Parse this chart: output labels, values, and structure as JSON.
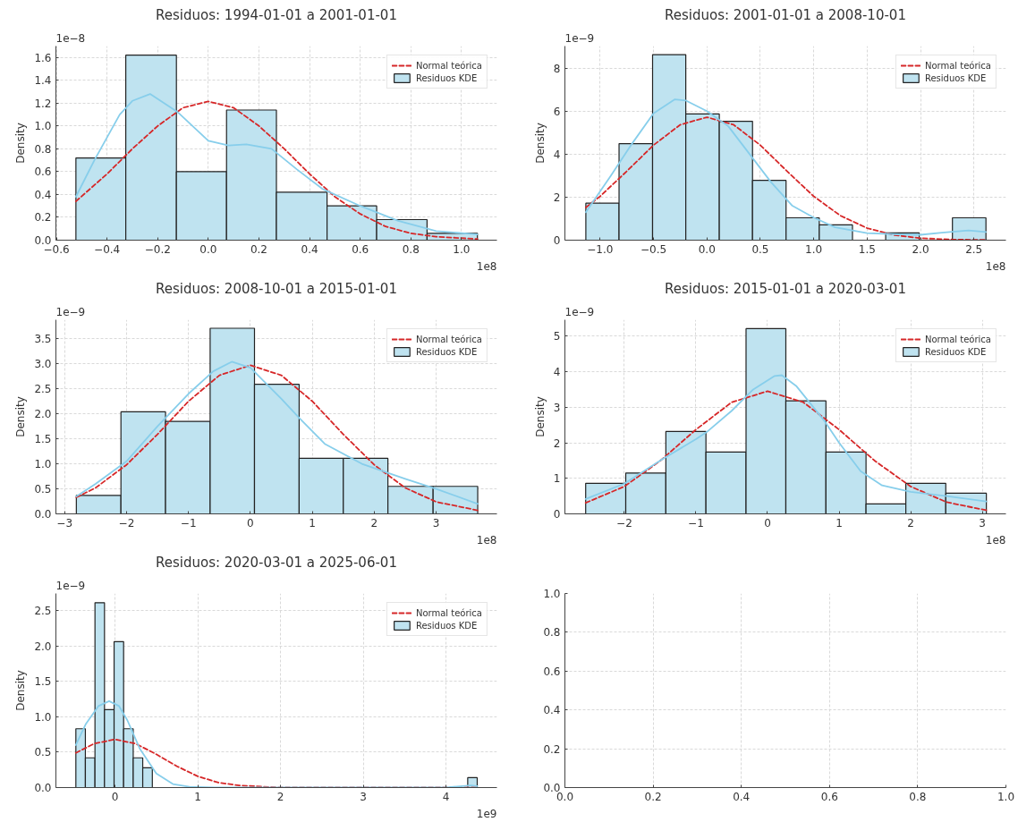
{
  "chart_data": [
    {
      "type": "histogram",
      "title": "Residuos: 1994-01-01 a 2001-01-01",
      "ylabel": "Density",
      "annotations": [
        "1e−8",
        "1e8"
      ],
      "grid": true,
      "legend": "top right",
      "xlim": [
        -0.602,
        1.14
      ],
      "ylim": [
        0.0,
        1.7
      ],
      "xticks": [
        -0.6,
        -0.4,
        -0.2,
        {
          "value": 0,
          "label": "0.0"
        },
        0.2,
        0.4,
        0.6,
        0.8,
        {
          "value": 1,
          "label": "1.0"
        }
      ],
      "yticks": [
        {
          "value": 0,
          "label": "0.0"
        },
        0.2,
        0.4,
        0.6,
        0.8,
        {
          "value": 1,
          "label": "1.0"
        },
        1.2,
        1.4,
        1.6
      ],
      "series": [
        {
          "type": "line",
          "name": "Normal teórica",
          "color": "#d62728",
          "line_style": "dashed",
          "x": [
            -0.523,
            -0.4,
            -0.3,
            -0.2,
            -0.1,
            0,
            0.1,
            0.2,
            0.3,
            0.4,
            0.5,
            0.6,
            0.7,
            0.8,
            0.9,
            1.063
          ],
          "values": [
            0.34,
            0.58,
            0.8,
            1.0,
            1.16,
            1.215,
            1.16,
            1.0,
            0.8,
            0.58,
            0.38,
            0.23,
            0.12,
            0.06,
            0.03,
            0.01
          ]
        },
        {
          "name": "Residuos KDE",
          "color": "#bfe3f0",
          "bins": [
            -0.523,
            -0.326,
            -0.126,
            0.072,
            0.269,
            0.469,
            0.665,
            0.864,
            1.063
          ],
          "values": [
            0.72,
            1.62,
            0.6,
            1.14,
            0.42,
            0.3,
            0.18,
            0.06
          ]
        },
        {
          "type": "line",
          "color": "#87ceeb",
          "line_style": "solid",
          "x": [
            -0.523,
            -0.45,
            -0.35,
            -0.3,
            -0.23,
            -0.12,
            0,
            0.08,
            0.15,
            0.25,
            0.35,
            0.45,
            0.6,
            0.75,
            0.9,
            1.063
          ],
          "values": [
            0.38,
            0.7,
            1.1,
            1.22,
            1.28,
            1.12,
            0.87,
            0.83,
            0.84,
            0.8,
            0.62,
            0.45,
            0.3,
            0.17,
            0.08,
            0.05
          ]
        }
      ]
    },
    {
      "type": "histogram",
      "title": "Residuos: 2001-01-01 a 2008-10-01",
      "ylabel": "Density",
      "annotations": [
        "1e−9",
        "1e8"
      ],
      "grid": true,
      "legend": "top right",
      "xlim": [
        -1.33,
        2.8
      ],
      "ylim": [
        0,
        9.03
      ],
      "xticks": [
        {
          "value": -1,
          "label": "−1.0"
        },
        -0.5,
        {
          "value": 0,
          "label": "0.0"
        },
        0.5,
        {
          "value": 1,
          "label": "1.0"
        },
        1.5,
        {
          "value": 2,
          "label": "2.0"
        },
        2.5
      ],
      "yticks": [
        0,
        2,
        4,
        6,
        8
      ],
      "series": [
        {
          "type": "line",
          "name": "Normal teórica",
          "color": "#d62728",
          "line_style": "dashed",
          "x": [
            -1.134,
            -1.0,
            -0.75,
            -0.5,
            -0.25,
            0,
            0.25,
            0.5,
            0.75,
            1.0,
            1.25,
            1.5,
            1.75,
            2.0,
            2.3,
            2.613
          ],
          "values": [
            1.52,
            2.04,
            3.21,
            4.42,
            5.37,
            5.72,
            5.37,
            4.42,
            3.21,
            2.04,
            1.14,
            0.56,
            0.24,
            0.09,
            0.03,
            0.01
          ]
        },
        {
          "name": "Residuos KDE",
          "color": "#bfe3f0",
          "bins": [
            -1.134,
            -0.823,
            -0.509,
            -0.198,
            0.116,
            0.427,
            0.741,
            1.052,
            1.363,
            1.674,
            1.988,
            2.299,
            2.613
          ],
          "values": [
            1.72,
            4.49,
            8.63,
            5.87,
            5.53,
            2.78,
            1.04,
            0.71,
            0,
            0.34,
            0,
            1.04
          ]
        },
        {
          "type": "line",
          "color": "#87ceeb",
          "line_style": "solid",
          "x": [
            -1.134,
            -0.9,
            -0.7,
            -0.5,
            -0.3,
            -0.2,
            0,
            0.2,
            0.4,
            0.6,
            0.8,
            1.0,
            1.2,
            1.5,
            1.8,
            2.0,
            2.2,
            2.45,
            2.613
          ],
          "values": [
            1.3,
            3.0,
            4.5,
            5.9,
            6.55,
            6.5,
            6.0,
            5.3,
            4.0,
            2.7,
            1.6,
            1.05,
            0.6,
            0.33,
            0.27,
            0.25,
            0.35,
            0.45,
            0.38
          ]
        }
      ]
    },
    {
      "type": "histogram",
      "title": "Residuos: 2008-10-01 a 2015-01-01",
      "ylabel": "Density",
      "annotations": [
        "1e−9",
        "1e8"
      ],
      "grid": true,
      "legend": "top right",
      "xlim": [
        -3.14,
        3.98
      ],
      "ylim": [
        0.0,
        3.88
      ],
      "xticks": [
        -3,
        -2,
        -1,
        0,
        1,
        2,
        3
      ],
      "yticks": [
        {
          "value": 0,
          "label": "0.0"
        },
        0.5,
        {
          "value": 1,
          "label": "1.0"
        },
        1.5,
        {
          "value": 2,
          "label": "2.0"
        },
        2.5,
        {
          "value": 3,
          "label": "3.0"
        },
        3.5
      ],
      "series": [
        {
          "type": "line",
          "name": "Normal teórica",
          "color": "#d62728",
          "line_style": "dashed",
          "x": [
            -2.81,
            -2.5,
            -2,
            -1.5,
            -1,
            -0.5,
            0,
            0.5,
            1,
            1.5,
            2,
            2.5,
            3,
            3.67
          ],
          "values": [
            0.33,
            0.52,
            0.98,
            1.59,
            2.25,
            2.77,
            2.97,
            2.77,
            2.25,
            1.59,
            0.98,
            0.52,
            0.24,
            0.07
          ]
        },
        {
          "name": "Residuos KDE",
          "color": "#bfe3f0",
          "bins": [
            -2.81,
            -2.09,
            -1.37,
            -0.65,
            0.066,
            0.787,
            1.5,
            2.22,
            2.95,
            3.67
          ],
          "values": [
            0.37,
            2.04,
            1.85,
            3.71,
            2.59,
            1.11,
            1.11,
            0.55,
            0.55
          ]
        },
        {
          "type": "line",
          "color": "#87ceeb",
          "line_style": "solid",
          "x": [
            -2.81,
            -2.5,
            -2,
            -1.5,
            -1,
            -0.6,
            -0.3,
            0,
            0.5,
            0.8,
            1.2,
            1.8,
            2.5,
            3.0,
            3.67
          ],
          "values": [
            0.35,
            0.6,
            1.05,
            1.75,
            2.4,
            2.85,
            3.04,
            2.92,
            2.3,
            1.9,
            1.4,
            1.0,
            0.7,
            0.5,
            0.2
          ]
        }
      ]
    },
    {
      "type": "histogram",
      "title": "Residuos: 2015-01-01 a 2020-03-01",
      "ylabel": "Density",
      "annotations": [
        "1e−9",
        "1e8"
      ],
      "grid": true,
      "legend": "top right",
      "xlim": [
        -2.83,
        3.33
      ],
      "ylim": [
        0,
        5.46
      ],
      "xticks": [
        -2,
        -1,
        0,
        1,
        2,
        3
      ],
      "yticks": [
        0,
        1,
        2,
        3,
        4,
        5
      ],
      "series": [
        {
          "type": "line",
          "name": "Normal teórica",
          "color": "#d62728",
          "line_style": "dashed",
          "x": [
            -2.54,
            -2,
            -1.5,
            -1,
            -0.5,
            0,
            0.5,
            1,
            1.5,
            2,
            2.5,
            3.057
          ],
          "values": [
            0.31,
            0.77,
            1.49,
            2.37,
            3.14,
            3.45,
            3.14,
            2.37,
            1.49,
            0.77,
            0.33,
            0.1
          ]
        },
        {
          "name": "Residuos KDE",
          "color": "#bfe3f0",
          "bins": [
            -2.54,
            -1.98,
            -1.42,
            -0.86,
            -0.3,
            0.256,
            0.816,
            1.376,
            1.932,
            2.49,
            3.057
          ],
          "values": [
            0.86,
            1.15,
            2.32,
            1.74,
            5.21,
            3.18,
            1.74,
            0.28,
            0.86,
            0.58
          ]
        },
        {
          "type": "line",
          "color": "#87ceeb",
          "line_style": "solid",
          "x": [
            -2.54,
            -2,
            -1.5,
            -1,
            -0.85,
            -0.5,
            -0.2,
            0.1,
            0.2,
            0.4,
            0.8,
            1.0,
            1.3,
            1.6,
            2.0,
            2.5,
            3.057
          ],
          "values": [
            0.42,
            0.85,
            1.5,
            2.1,
            2.3,
            2.9,
            3.5,
            3.88,
            3.9,
            3.6,
            2.6,
            2.0,
            1.2,
            0.8,
            0.62,
            0.5,
            0.35
          ]
        }
      ]
    },
    {
      "type": "histogram",
      "title": "Residuos: 2020-03-01 a 2025-06-01",
      "ylabel": "Density",
      "annotations": [
        "1e−9",
        "1e9"
      ],
      "grid": true,
      "legend": "top right",
      "xlim": [
        -0.713,
        4.615
      ],
      "ylim": [
        0.0,
        2.74
      ],
      "xticks": [
        0,
        1,
        2,
        3,
        4
      ],
      "yticks": [
        {
          "value": 0,
          "label": "0.0"
        },
        0.5,
        {
          "value": 1,
          "label": "1.0"
        },
        1.5,
        {
          "value": 2,
          "label": "2.0"
        },
        2.5
      ],
      "series": [
        {
          "type": "line",
          "name": "Normal teórica",
          "color": "#d62728",
          "line_style": "dashed",
          "x": [
            -0.472,
            -0.25,
            0,
            0.25,
            0.5,
            0.75,
            1.0,
            1.25,
            1.5,
            2,
            3,
            4.377
          ],
          "values": [
            0.49,
            0.62,
            0.68,
            0.62,
            0.47,
            0.3,
            0.16,
            0.07,
            0.03,
            0,
            0,
            0
          ]
        },
        {
          "name": "Residuos KDE",
          "color": "#bfe3f0",
          "bins": [
            -0.472,
            -0.357,
            -0.241,
            -0.126,
            -0.01,
            0.105,
            0.221,
            0.336,
            0.452,
            0.567,
            0.683,
            0.798,
            0.913,
            1.029,
            1.144,
            1.26,
            1.375,
            1.491,
            1.606,
            1.722,
            1.837,
            1.952,
            2.068,
            2.183,
            2.299,
            2.414,
            2.53,
            2.645,
            2.761,
            2.876,
            2.992,
            3.107,
            3.222,
            3.338,
            3.453,
            3.569,
            3.684,
            3.8,
            3.915,
            4.031,
            4.146,
            4.262,
            4.377
          ],
          "values": [
            0.83,
            0.42,
            2.61,
            1.1,
            2.06,
            0.83,
            0.42,
            0.28,
            0,
            0,
            0,
            0,
            0,
            0,
            0,
            0,
            0,
            0,
            0,
            0,
            0,
            0,
            0,
            0,
            0,
            0,
            0,
            0,
            0,
            0,
            0,
            0,
            0,
            0,
            0,
            0,
            0,
            0,
            0,
            0,
            0,
            0.14
          ]
        },
        {
          "type": "line",
          "color": "#87ceeb",
          "line_style": "solid",
          "x": [
            -0.472,
            -0.35,
            -0.2,
            -0.07,
            0.05,
            0.15,
            0.3,
            0.5,
            0.7,
            0.9,
            1.2,
            2,
            3,
            4.0,
            4.2,
            4.3,
            4.377
          ],
          "values": [
            0.6,
            0.9,
            1.15,
            1.22,
            1.15,
            0.95,
            0.55,
            0.2,
            0.05,
            0.01,
            0,
            0,
            0,
            0,
            0.02,
            0.03,
            0.02
          ]
        }
      ]
    },
    {
      "type": "line",
      "grid": true,
      "xlim": [
        0.0,
        1.0
      ],
      "ylim": [
        0.0,
        1.0
      ],
      "xticks": [
        {
          "value": 0,
          "label": "0.0"
        },
        0.2,
        0.4,
        0.6,
        0.8,
        {
          "value": 1,
          "label": "1.0"
        }
      ],
      "yticks": [
        {
          "value": 0,
          "label": "0.0"
        },
        0.2,
        0.4,
        0.6,
        0.8,
        {
          "value": 1,
          "label": "1.0"
        }
      ]
    }
  ]
}
